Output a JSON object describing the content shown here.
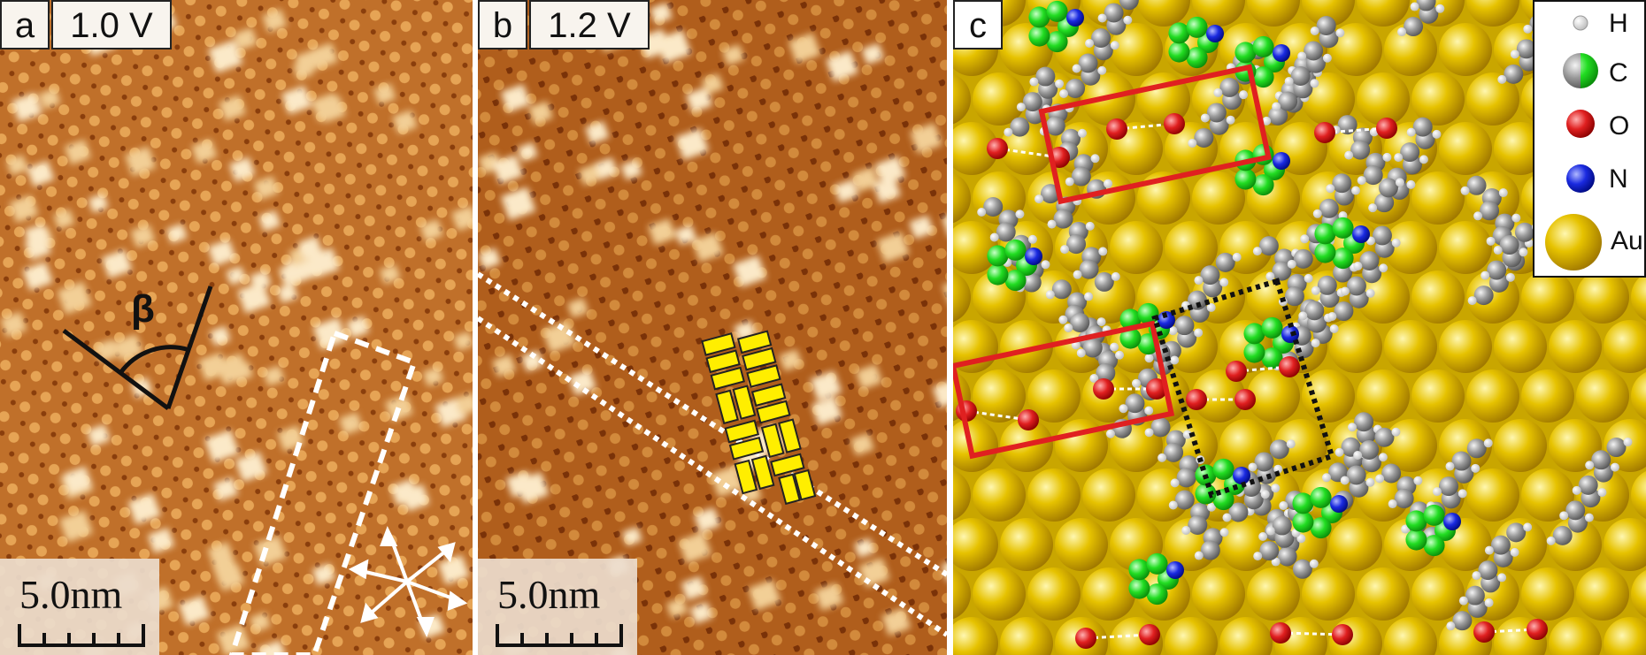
{
  "panels": [
    {
      "letter": "a",
      "voltage": "1.0 V",
      "scale": "5.0nm",
      "angle_label": "β"
    },
    {
      "letter": "b",
      "voltage": "1.2 V",
      "scale": "5.0nm"
    },
    {
      "letter": "c"
    }
  ],
  "legend": [
    {
      "label": "H",
      "color": "#ffffff"
    },
    {
      "label": "C",
      "color": "#9a9a9a",
      "color2": "#22dd22"
    },
    {
      "label": "O",
      "color": "#e02020"
    },
    {
      "label": "N",
      "color": "#1a2ae0"
    },
    {
      "label": "Au",
      "color": "#e6c200"
    }
  ],
  "colors": {
    "stm_dark": "#9a4a10",
    "stm_mid": "#c8782a",
    "stm_bright": "#f8e8c8",
    "highlight_box": "#e02020",
    "unit_cell": "#111111",
    "motif": "#ffee00"
  }
}
